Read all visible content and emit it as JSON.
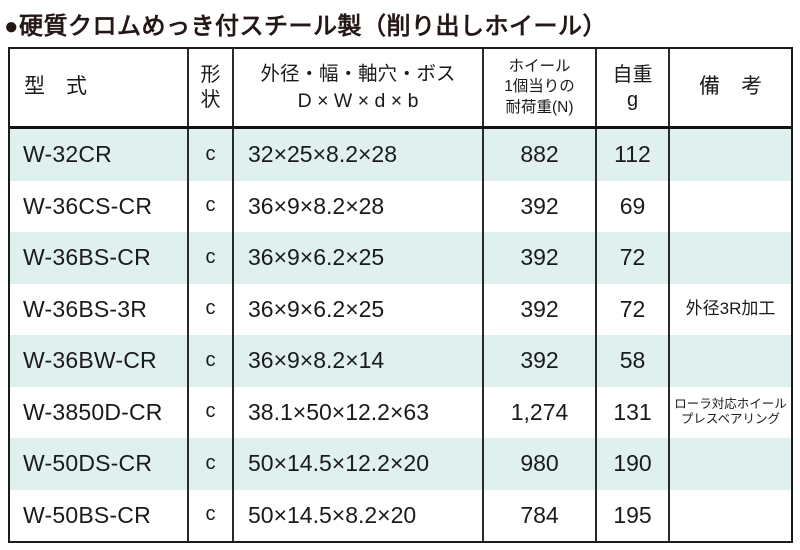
{
  "title": "●硬質クロムめっき付スチール製（削り出しホイール）",
  "table": {
    "headers": {
      "model": "型　式",
      "shape": "形\n状",
      "dims": "外径・幅・軸穴・ボス\nD × W × d × b",
      "load": "ホイール\n1個当りの\n耐荷重(N)",
      "weight": "自重\ng",
      "remarks": "備　考"
    },
    "rows": [
      {
        "model": "W-32CR",
        "shape": "c",
        "dims": "32×25×8.2×28",
        "load": "882",
        "weight": "112",
        "remark": ""
      },
      {
        "model": "W-36CS-CR",
        "shape": "c",
        "dims": "36×9×8.2×28",
        "load": "392",
        "weight": "69",
        "remark": ""
      },
      {
        "model": "W-36BS-CR",
        "shape": "c",
        "dims": "36×9×6.2×25",
        "load": "392",
        "weight": "72",
        "remark": ""
      },
      {
        "model": "W-36BS-3R",
        "shape": "c",
        "dims": "36×9×6.2×25",
        "load": "392",
        "weight": "72",
        "remark": "外径3R加工"
      },
      {
        "model": "W-36BW-CR",
        "shape": "c",
        "dims": "36×9×8.2×14",
        "load": "392",
        "weight": "58",
        "remark": ""
      },
      {
        "model": "W-3850D-CR",
        "shape": "c",
        "dims": "38.1×50×12.2×63",
        "load": "1,274",
        "weight": "131",
        "remark": "ローラ対応ホイール\nプレスベアリング"
      },
      {
        "model": "W-50DS-CR",
        "shape": "c",
        "dims": "50×14.5×12.2×20",
        "load": "980",
        "weight": "190",
        "remark": ""
      },
      {
        "model": "W-50BS-CR",
        "shape": "c",
        "dims": "50×14.5×8.2×20",
        "load": "784",
        "weight": "195",
        "remark": ""
      }
    ],
    "colors": {
      "row_alt_background": "#e0f0ee",
      "border": "#1c1c1c",
      "text": "#231815"
    }
  }
}
